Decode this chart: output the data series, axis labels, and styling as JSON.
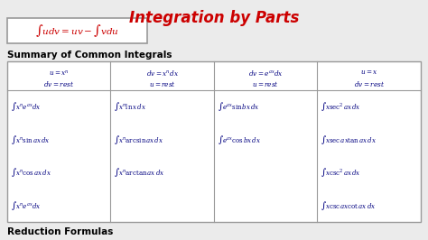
{
  "title": "Integration by Parts",
  "title_color": "#cc0000",
  "section_title": "Summary of Common Integrals",
  "footer_title": "Reduction Formulas",
  "bg_color": "#ebebeb",
  "table_bg": "#ffffff",
  "border_color": "#999999",
  "header_color": "#000080",
  "integral_color": "#000080",
  "formula_color": "#cc0000",
  "text_color": "#000000",
  "col_headers_line1": [
    "$u = x^n$",
    "$dv = x^n dx$",
    "$dv = e^{ax} dx$",
    "$u = x$"
  ],
  "col_headers_line2": [
    "$dv = rest$",
    "$u = rest$",
    "$u = rest$",
    "$dv = rest$"
  ],
  "col1": [
    "$\\int x^n e^{ax} dx$",
    "$\\int x^n \\sin ax\\, dx$",
    "$\\int x^n \\cos ax\\, dx$",
    "$\\int x^n e^{ax} dx$"
  ],
  "col2": [
    "$\\int x^n \\ln x\\, dx$",
    "$\\int x^n \\arcsin ax\\, dx$",
    "$\\int x^n \\arctan ax\\, dx$"
  ],
  "col3": [
    "$\\int e^{ax} \\sin bx\\, dx$",
    "$\\int e^{ax} \\cos bx\\, dx$"
  ],
  "col4": [
    "$\\int x \\sec^2 ax\\, dx$",
    "$\\int x \\sec ax \\tan ax\\, dx$",
    "$\\int x \\csc^2 ax\\, dx$",
    "$\\int x \\csc ax \\cot ax\\, dx$"
  ]
}
